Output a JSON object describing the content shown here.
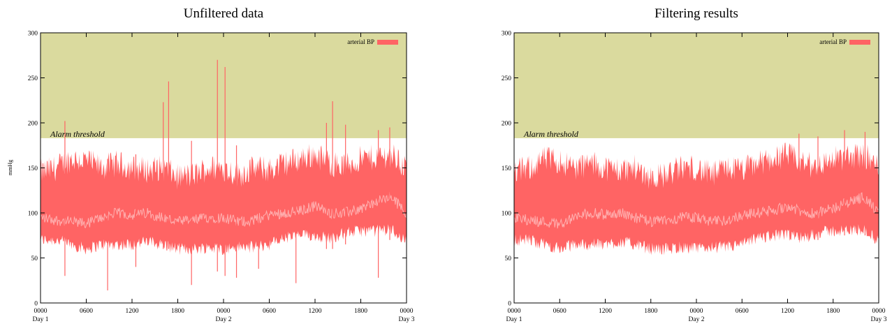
{
  "colors": {
    "alarm_zone": "#dada9e",
    "series": "#ff6464",
    "mean_line": "#ffb0b0",
    "background": "#ffffff"
  },
  "chart_data": [
    {
      "type": "area",
      "title": "Unfiltered data",
      "ylabel": "mmHg",
      "ylim": [
        0,
        300
      ],
      "yticks": [
        "0",
        "50",
        "100",
        "150",
        "200",
        "250",
        "300"
      ],
      "xticks": [
        "0000",
        "0600",
        "1200",
        "1800",
        "0000",
        "0600",
        "1200",
        "1800",
        "0000"
      ],
      "xday_labels": [
        {
          "at": "0000",
          "label": "Day 1"
        },
        {
          "at": "0000",
          "label": "Day 2"
        },
        {
          "at": "0000",
          "label": "Day 3"
        }
      ],
      "xlim_hours": [
        0,
        48
      ],
      "alarm_threshold": 183,
      "alarm_label": "Alarm threshold",
      "legend": {
        "label": "arterial BP",
        "position": "top-right"
      },
      "series": [
        {
          "name": "arterial BP",
          "hour": [
            0,
            2,
            4,
            6,
            8,
            10,
            12,
            14,
            16,
            18,
            20,
            22,
            24,
            26,
            28,
            30,
            32,
            34,
            36,
            38,
            40,
            42,
            44,
            46,
            48
          ],
          "upper": [
            145,
            150,
            160,
            158,
            150,
            155,
            150,
            148,
            150,
            140,
            142,
            150,
            150,
            142,
            150,
            148,
            155,
            160,
            165,
            155,
            152,
            160,
            162,
            165,
            150
          ],
          "lower": [
            70,
            70,
            65,
            60,
            65,
            65,
            65,
            68,
            65,
            60,
            60,
            62,
            60,
            62,
            62,
            65,
            72,
            75,
            75,
            72,
            78,
            80,
            80,
            82,
            68
          ],
          "mean": [
            95,
            92,
            90,
            88,
            95,
            100,
            98,
            100,
            95,
            90,
            92,
            95,
            95,
            90,
            92,
            98,
            100,
            102,
            108,
            100,
            100,
            105,
            112,
            118,
            100
          ]
        }
      ],
      "spikes": [
        {
          "hour": 3.2,
          "high": 202,
          "low": 30
        },
        {
          "hour": 8.8,
          "high": 160,
          "low": 14
        },
        {
          "hour": 12.5,
          "high": 165,
          "low": 40
        },
        {
          "hour": 16.1,
          "high": 223,
          "low": 60
        },
        {
          "hour": 16.8,
          "high": 246,
          "low": 60
        },
        {
          "hour": 19.8,
          "high": 180,
          "low": 20
        },
        {
          "hour": 23.2,
          "high": 270,
          "low": 35
        },
        {
          "hour": 24.2,
          "high": 262,
          "low": 30
        },
        {
          "hour": 25.7,
          "high": 175,
          "low": 28
        },
        {
          "hour": 28.6,
          "high": 140,
          "low": 38
        },
        {
          "hour": 33.5,
          "high": 150,
          "low": 22
        },
        {
          "hour": 37.5,
          "high": 200,
          "low": 60
        },
        {
          "hour": 38.3,
          "high": 224,
          "low": 60
        },
        {
          "hour": 40.0,
          "high": 198,
          "low": 65
        },
        {
          "hour": 44.3,
          "high": 192,
          "low": 28
        },
        {
          "hour": 45.8,
          "high": 195,
          "low": 70
        }
      ]
    },
    {
      "type": "area",
      "title": "Filtering results",
      "ylabel": "",
      "ylim": [
        0,
        300
      ],
      "yticks": [
        "0",
        "50",
        "100",
        "150",
        "200",
        "250",
        "300"
      ],
      "xticks": [
        "0000",
        "0600",
        "1200",
        "1800",
        "0000",
        "0600",
        "1200",
        "1800",
        "0000"
      ],
      "xday_labels": [
        {
          "at": "0000",
          "label": "Day 1"
        },
        {
          "at": "0000",
          "label": "Day 2"
        },
        {
          "at": "0000",
          "label": "Day 3"
        }
      ],
      "xlim_hours": [
        0,
        48
      ],
      "alarm_threshold": 183,
      "alarm_label": "Alarm threshold",
      "legend": {
        "label": "arterial BP",
        "position": "top-right"
      },
      "series": [
        {
          "name": "arterial BP",
          "hour": [
            0,
            2,
            4,
            6,
            8,
            10,
            12,
            14,
            16,
            18,
            20,
            22,
            24,
            26,
            28,
            30,
            32,
            34,
            36,
            38,
            40,
            42,
            44,
            46,
            48
          ],
          "upper": [
            145,
            150,
            160,
            158,
            150,
            155,
            150,
            148,
            150,
            140,
            142,
            150,
            150,
            142,
            150,
            148,
            155,
            160,
            165,
            155,
            152,
            160,
            162,
            165,
            150
          ],
          "lower": [
            70,
            70,
            65,
            60,
            65,
            65,
            65,
            68,
            65,
            60,
            60,
            62,
            60,
            62,
            62,
            65,
            72,
            75,
            75,
            72,
            78,
            80,
            80,
            82,
            68
          ],
          "mean": [
            95,
            92,
            90,
            88,
            95,
            100,
            98,
            100,
            95,
            90,
            92,
            95,
            95,
            90,
            92,
            98,
            100,
            102,
            108,
            100,
            100,
            105,
            112,
            118,
            100
          ]
        }
      ],
      "spikes": [
        {
          "hour": 37.5,
          "high": 188,
          "low": 70
        },
        {
          "hour": 40.0,
          "high": 185,
          "low": 70
        },
        {
          "hour": 43.5,
          "high": 192,
          "low": 75
        },
        {
          "hour": 46.2,
          "high": 190,
          "low": 75
        }
      ]
    }
  ]
}
